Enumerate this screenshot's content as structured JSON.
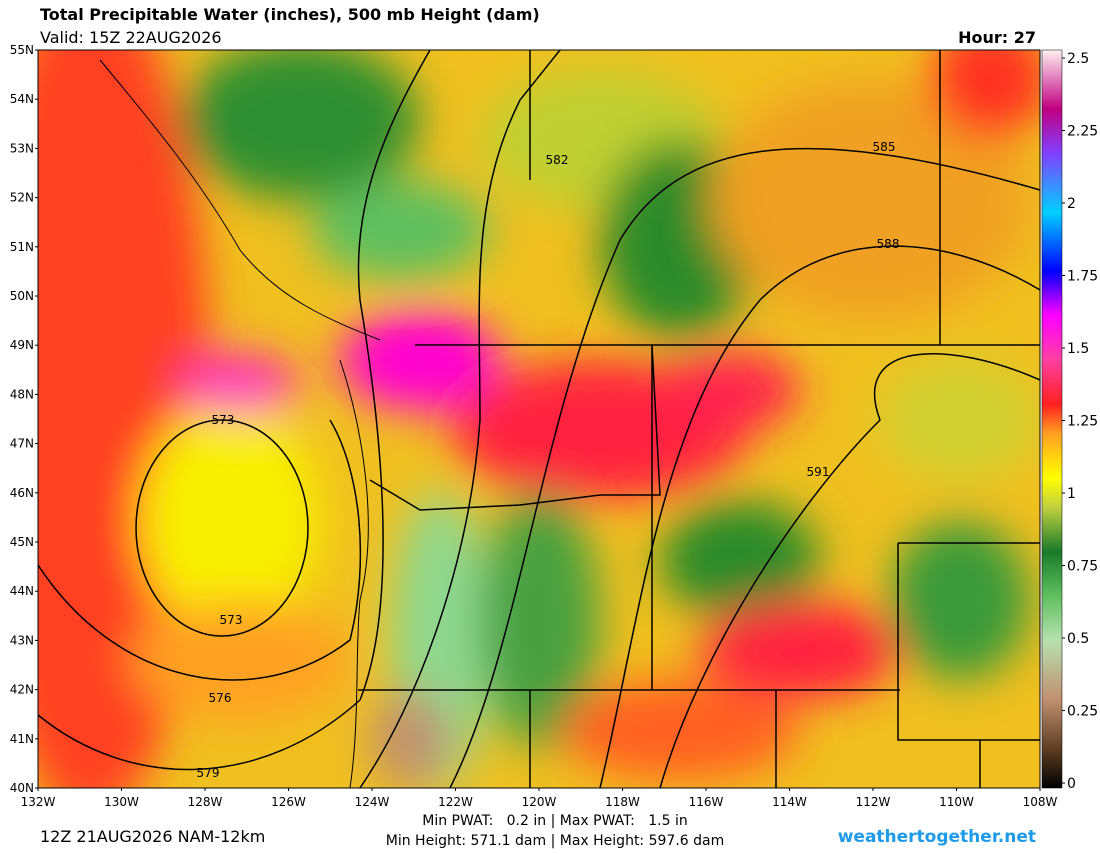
{
  "header": {
    "title": "Total Precipitable Water (inches), 500 mb Height (dam)",
    "valid": "Valid: 15Z 22AUG2026",
    "hour": "Hour: 27"
  },
  "map": {
    "lat_labels": [
      "55N",
      "54N",
      "53N",
      "52N",
      "51N",
      "50N",
      "49N",
      "48N",
      "47N",
      "46N",
      "45N",
      "44N",
      "43N",
      "42N",
      "41N",
      "40N"
    ],
    "lon_labels": [
      "132W",
      "130W",
      "128W",
      "126W",
      "124W",
      "122W",
      "120W",
      "118W",
      "116W",
      "114W",
      "112W",
      "110W",
      "108W"
    ],
    "contour_labels": [
      573,
      573,
      576,
      579,
      582,
      585,
      588,
      591
    ]
  },
  "colorbar": {
    "ticks": [
      2.5,
      2.25,
      2,
      1.75,
      1.5,
      1.25,
      1,
      0.75,
      0.5,
      0.25,
      0
    ],
    "range": [
      0,
      2.5
    ]
  },
  "footer": {
    "run": "12Z 21AUG2026 NAM-12km",
    "pwat": "Min PWAT:   0.2 in | Max PWAT:   1.5 in",
    "height": "Min Height: 571.1 dam | Max Height: 597.6 dam",
    "site": "weathertogether.net"
  }
}
